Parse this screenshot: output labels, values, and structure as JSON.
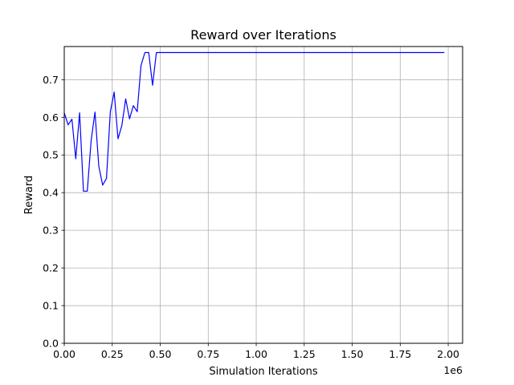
{
  "chart_data": {
    "type": "line",
    "title": "Reward over Iterations",
    "xlabel": "Simulation Iterations",
    "ylabel": "Reward",
    "x_offset_label": "1e6",
    "xlim": [
      0,
      2.075
    ],
    "ylim": [
      0,
      0.788
    ],
    "grid": true,
    "x_ticks": [
      0,
      0.25,
      0.5,
      0.75,
      1.0,
      1.25,
      1.5,
      1.75,
      2.0
    ],
    "x_tick_labels": [
      "0.00",
      "0.25",
      "0.50",
      "0.75",
      "1.00",
      "1.25",
      "1.50",
      "1.75",
      "2.00"
    ],
    "y_ticks": [
      0.0,
      0.1,
      0.2,
      0.3,
      0.4,
      0.5,
      0.6,
      0.7
    ],
    "y_tick_labels": [
      "0.0",
      "0.1",
      "0.2",
      "0.3",
      "0.4",
      "0.5",
      "0.6",
      "0.7"
    ],
    "series": [
      {
        "color": "#0000ff",
        "x": [
          0,
          0.02,
          0.04,
          0.06,
          0.08,
          0.1,
          0.12,
          0.14,
          0.16,
          0.18,
          0.2,
          0.22,
          0.24,
          0.26,
          0.28,
          0.3,
          0.32,
          0.34,
          0.36,
          0.38,
          0.4,
          0.42,
          0.44,
          0.46,
          0.48,
          0.5,
          0.6,
          0.8,
          1.0,
          1.2,
          1.4,
          1.6,
          1.8,
          1.98
        ],
        "values": [
          0.612,
          0.58,
          0.595,
          0.49,
          0.612,
          0.404,
          0.404,
          0.538,
          0.614,
          0.47,
          0.42,
          0.438,
          0.615,
          0.667,
          0.543,
          0.578,
          0.649,
          0.596,
          0.631,
          0.615,
          0.738,
          0.772,
          0.772,
          0.685,
          0.772,
          0.772,
          0.772,
          0.772,
          0.772,
          0.772,
          0.772,
          0.772,
          0.772,
          0.772
        ]
      }
    ]
  }
}
